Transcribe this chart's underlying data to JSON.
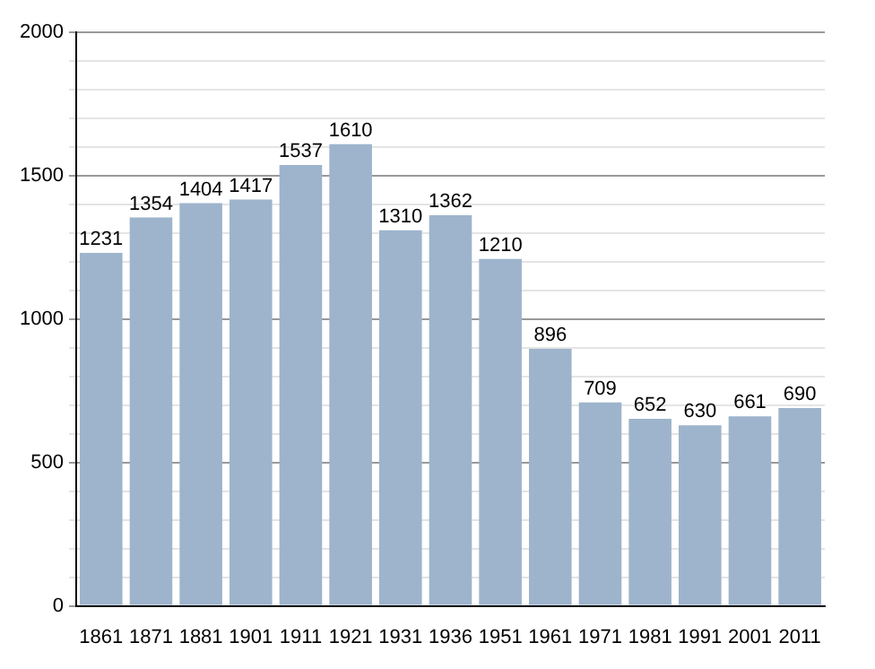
{
  "chart_data": {
    "type": "bar",
    "categories": [
      "1861",
      "1871",
      "1881",
      "1901",
      "1911",
      "1921",
      "1931",
      "1936",
      "1951",
      "1961",
      "1971",
      "1981",
      "1991",
      "2001",
      "2011"
    ],
    "values": [
      1231,
      1354,
      1404,
      1417,
      1537,
      1610,
      1310,
      1362,
      1210,
      896,
      709,
      652,
      630,
      661,
      690
    ],
    "color": "#9db4cc",
    "ylim": [
      0,
      2000
    ],
    "yticks": [
      0,
      {
        "value": 100,
        "label": null
      },
      {
        "value": 200,
        "label": null
      },
      {
        "value": 300,
        "label": null
      },
      {
        "value": 400,
        "label": null
      },
      500,
      {
        "value": 600,
        "label": null
      },
      {
        "value": 700,
        "label": null
      },
      {
        "value": 800,
        "label": null
      },
      {
        "value": 900,
        "label": null
      },
      1000,
      {
        "value": 1100,
        "label": null
      },
      {
        "value": 1200,
        "label": null
      },
      {
        "value": 1300,
        "label": null
      },
      {
        "value": 1400,
        "label": null
      },
      1500,
      {
        "value": 1600,
        "label": null
      },
      {
        "value": 1700,
        "label": null
      },
      {
        "value": 1800,
        "label": null
      },
      {
        "value": 1900,
        "label": null
      },
      2000
    ],
    "grid": "y",
    "data_labels": true,
    "legend": false
  }
}
